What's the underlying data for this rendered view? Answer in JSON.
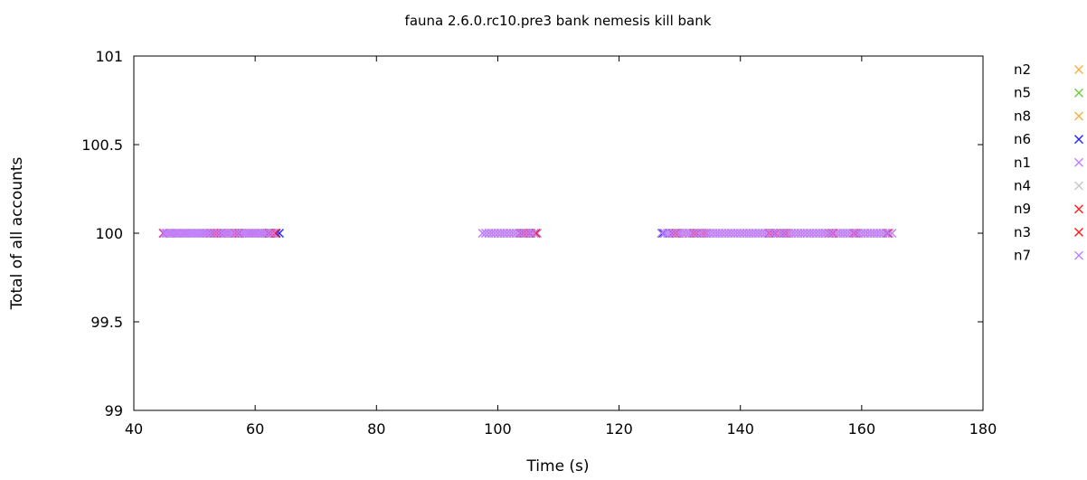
{
  "chart_data": {
    "type": "scatter",
    "title": "fauna 2.6.0.rc10.pre3 bank nemesis kill bank",
    "xlabel": "Time (s)",
    "ylabel": "Total of all accounts",
    "xlim": [
      40,
      180
    ],
    "ylim": [
      99,
      101
    ],
    "xticks": [
      "40",
      "60",
      "80",
      "100",
      "120",
      "140",
      "160",
      "180"
    ],
    "yticks": [
      "99",
      "99.5",
      "100",
      "100.5",
      "101"
    ],
    "grid": false,
    "legend_position": "right",
    "marker": "x",
    "y_value": 100,
    "series": [
      {
        "name": "n2",
        "color": "#f5b041",
        "ranges": [
          [
            45.5,
            63.0
          ],
          [
            98.0,
            106.0
          ],
          [
            127.5,
            164.5
          ]
        ]
      },
      {
        "name": "n5",
        "color": "#6ecb3c",
        "ranges": [
          [
            127.0,
            128.0
          ]
        ]
      },
      {
        "name": "n8",
        "color": "#f5b041",
        "ranges": [
          [
            46.0,
            62.0
          ],
          [
            99.0,
            105.0
          ],
          [
            128.5,
            164.0
          ]
        ]
      },
      {
        "name": "n6",
        "color": "#2020ff",
        "ranges": [
          [
            63.5,
            64.0
          ],
          [
            127.2,
            127.6
          ]
        ]
      },
      {
        "name": "n1",
        "color": "#c080ff",
        "ranges": [
          [
            44.8,
            63.5
          ],
          [
            97.5,
            106.5
          ],
          [
            127.0,
            165.0
          ]
        ]
      },
      {
        "name": "n4",
        "color": "#c8c8c8",
        "ranges": [
          [
            45.0,
            63.0
          ],
          [
            98.0,
            106.0
          ],
          [
            128.0,
            164.0
          ]
        ]
      },
      {
        "name": "n9",
        "color": "#ff1a1a",
        "points": [
          44.9,
          47.0,
          48.5,
          52.0,
          52.6,
          53.2,
          53.8,
          54.4,
          55.0,
          56.6,
          57.0,
          57.4,
          59.0,
          60.0,
          62.0,
          62.3,
          62.6,
          63.3,
          103.8,
          104.2,
          104.6,
          105.0,
          105.5,
          106.3,
          128.8,
          129.2,
          129.6,
          131.5,
          132.3,
          133.0,
          133.6,
          134.4,
          144.8,
          145.4,
          146.0,
          146.6,
          147.2,
          154.0,
          154.6,
          155.2,
          158.7,
          159.1,
          164.3
        ]
      },
      {
        "name": "n3",
        "color": "#ff1a1a",
        "points": [
          46.0,
          51.5,
          53.5,
          55.5,
          57.2,
          59.5,
          61.0,
          62.4,
          104.4,
          105.2,
          129.4,
          130.5,
          132.8,
          134.0,
          145.8,
          147.6,
          155.0,
          159.0
        ]
      },
      {
        "name": "n7",
        "color": "#c080ff",
        "ranges": [
          [
            45.0,
            63.0
          ],
          [
            97.5,
            106.0
          ],
          [
            127.5,
            164.5
          ]
        ]
      }
    ]
  }
}
